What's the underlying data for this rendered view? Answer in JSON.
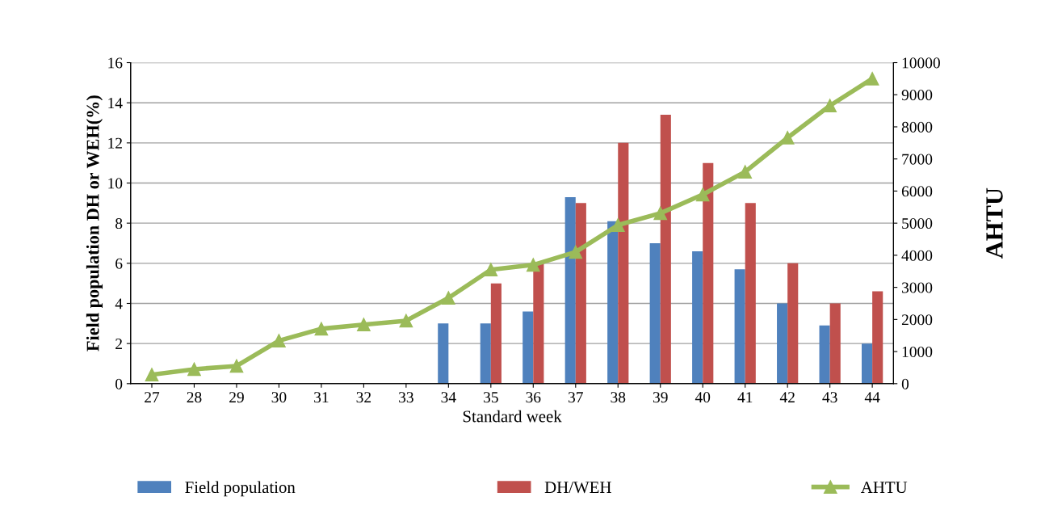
{
  "chart_data": {
    "type": "bar",
    "xlabel": "Standard week",
    "ylabel": "Field population DH or WEH(%)",
    "y2label": "AHTU",
    "categories": [
      "27",
      "28",
      "29",
      "30",
      "31",
      "32",
      "33",
      "34",
      "35",
      "36",
      "37",
      "38",
      "39",
      "40",
      "41",
      "42",
      "43",
      "44"
    ],
    "series": [
      {
        "name": "Field population",
        "color": "#4f81bd",
        "values": [
          0,
          0,
          0,
          0,
          0,
          0,
          0,
          3,
          3,
          3.6,
          9.3,
          8.1,
          7.0,
          6.6,
          5.7,
          4.0,
          2.9,
          2.0
        ]
      },
      {
        "name": "DH/WEH",
        "color": "#c0504d",
        "values": [
          0,
          0,
          0,
          0,
          0,
          0,
          0,
          0,
          5,
          6,
          9,
          12,
          13.4,
          11,
          9,
          6,
          4,
          4.6
        ]
      },
      {
        "name": "AHTU",
        "type": "line",
        "axis": "y2",
        "color": "#9bbb59",
        "marker": "triangle",
        "values": [
          280,
          450,
          550,
          1340,
          1710,
          1840,
          1960,
          2670,
          3550,
          3700,
          4100,
          4940,
          5310,
          5890,
          6600,
          7660,
          8660,
          9500
        ]
      }
    ],
    "ylim": [
      0,
      16
    ],
    "yticks": [
      0,
      2,
      4,
      6,
      8,
      10,
      12,
      14,
      16
    ],
    "y2lim": [
      0,
      10000
    ],
    "y2ticks": [
      0,
      1000,
      2000,
      3000,
      4000,
      5000,
      6000,
      7000,
      8000,
      9000,
      10000
    ],
    "grid": "y",
    "legend": "bottom"
  }
}
